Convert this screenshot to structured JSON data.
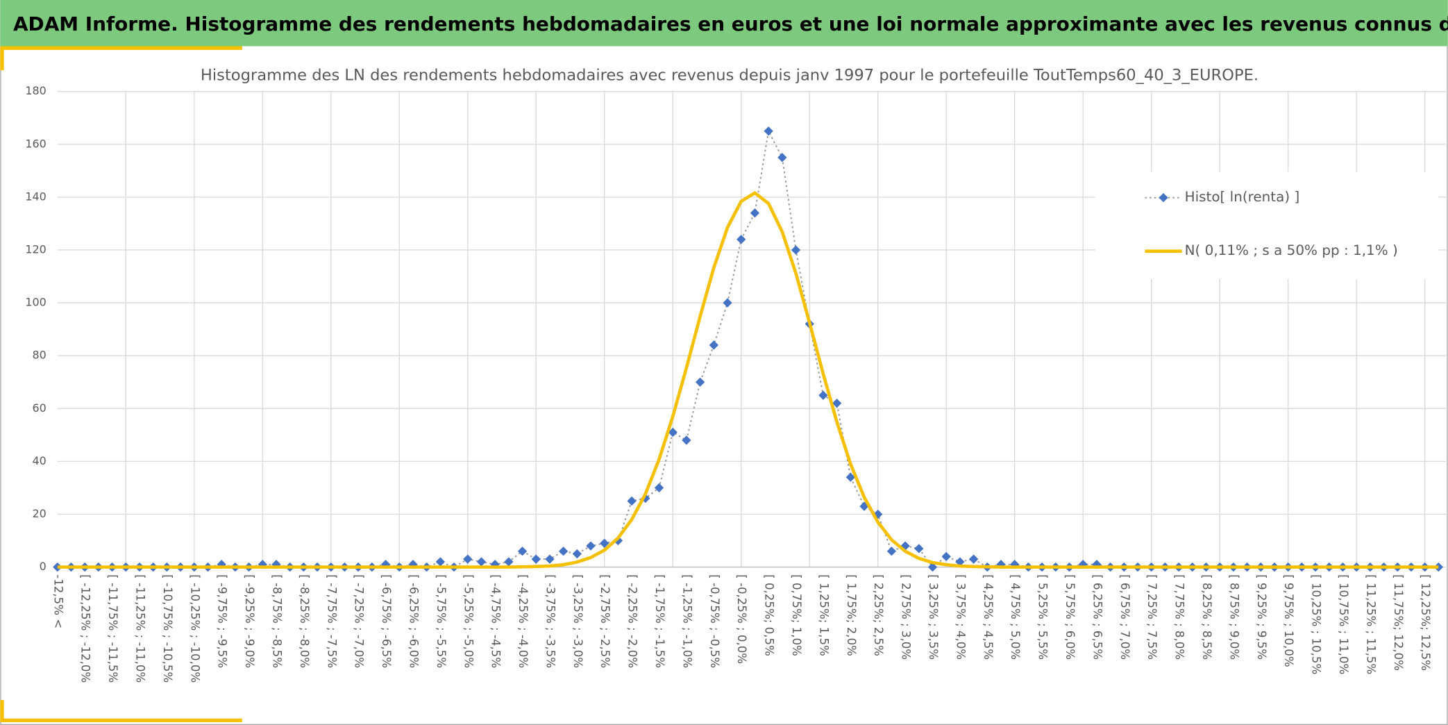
{
  "header": {
    "title": "ADAM Informe. Histogramme des rendements hebdomadaires en euros et une loi normale approximante avec les revenus connus distribués"
  },
  "chart_data": {
    "type": "line",
    "title": "Histogramme des LN des rendements hebdomadaires avec revenus depuis janv 1997 pour le portefeuille ToutTemps60_40_3_EUROPE.",
    "categories": [
      "-12,5% <",
      null,
      "[ -12,25% ; -12,0%",
      null,
      "[ -11,75% ; -11,5%",
      null,
      "[ -11,25% ; -11,0%",
      null,
      "[ -10,75% ; -10,5%",
      null,
      "[ -10,25% ; -10,0%",
      null,
      "[ -9,75% ; -9,5%",
      null,
      "[ -9,25% ; -9,0%",
      null,
      "[ -8,75% ; -8,5%",
      null,
      "[ -8,25% ; -8,0%",
      null,
      "[ -7,75% ; -7,5%",
      null,
      "[ -7,25% ; -7,0%",
      null,
      "[ -6,75% ; -6,5%",
      null,
      "[ -6,25% ; -6,0%",
      null,
      "[ -5,75% ; -5,5%",
      null,
      "[ -5,25% ; -5,0%",
      null,
      "[ -4,75% ; -4,5%",
      null,
      "[ -4,25% ; -4,0%",
      null,
      "[ -3,75% ; -3,5%",
      null,
      "[ -3,25% ; -3,0%",
      null,
      "[ -2,75% ; -2,5%",
      null,
      "[ -2,25% ; -2,0%",
      null,
      "[ -1,75% ; -1,5%",
      null,
      "[ -1,25% ; -1,0%",
      null,
      "[ -0,75% ; -0,5%",
      null,
      "[ -0,25% ; 0,0%",
      null,
      "[ 0,25%; 0,5%",
      null,
      "[ 0,75%; 1,0%",
      null,
      "[ 1,25%; 1,5%",
      null,
      "[ 1,75%; 2,0%",
      null,
      "[ 2,25%; 2,5%",
      null,
      "[ 2,75% ; 3,0%",
      null,
      "[ 3,25% ; 3,5%",
      null,
      "[ 3,75% ; 4,0%",
      null,
      "[ 4,25% ; 4,5%",
      null,
      "[ 4,75% ; 5,0%",
      null,
      "[ 5,25% ; 5,5%",
      null,
      "[ 5,75% ; 6,0%",
      null,
      "[ 6,25% ; 6,5%",
      null,
      "[ 6,75% ; 7,0%",
      null,
      "[ 7,25% ; 7,5%",
      null,
      "[ 7,75% ; 8,0%",
      null,
      "[ 8,25% ; 8,5%",
      null,
      "[ 8,75% ; 9,0%",
      null,
      "[ 9,25% ; 9,5%",
      null,
      "[ 9,75% ; 10,0%",
      null,
      "[ 10,25% ; 10,5%",
      null,
      "[ 10,75% ; 11,0%",
      null,
      "[ 11,25% ; 11,5%",
      null,
      "[ 11,75%; 12,0%",
      null,
      "[ 12,25%; 12,5%",
      null
    ],
    "series": [
      {
        "name": "Histo[ ln(renta) ]",
        "color": "#4472c4",
        "line_color": "#9a9a9a",
        "line_style": "dotted",
        "marker": "diamond",
        "values": [
          0,
          0,
          0,
          0,
          0,
          0,
          0,
          0,
          0,
          0,
          0,
          0,
          1,
          0,
          0,
          1,
          1,
          0,
          0,
          0,
          0,
          0,
          0,
          0,
          1,
          0,
          1,
          0,
          2,
          0,
          3,
          2,
          1,
          2,
          6,
          3,
          3,
          6,
          5,
          8,
          9,
          10,
          25,
          26,
          30,
          51,
          48,
          70,
          84,
          100,
          124,
          134,
          165,
          155,
          120,
          92,
          65,
          62,
          34,
          23,
          20,
          6,
          8,
          7,
          0,
          4,
          2,
          3,
          0,
          1,
          1,
          0,
          0,
          0,
          0,
          1,
          1,
          0,
          0,
          0,
          0,
          0,
          0,
          0,
          0,
          0,
          0,
          0,
          0,
          0,
          0,
          0,
          0,
          0,
          0,
          0,
          0,
          0,
          0,
          0,
          0,
          0
        ]
      },
      {
        "name": "N( 0,11% ; s a 50% pp : 1,1% )",
        "color": "#f5c000",
        "line_style": "solid",
        "values": [
          0,
          0,
          0,
          0,
          0,
          0,
          0,
          0,
          0,
          0,
          0,
          0,
          0,
          0,
          0,
          0,
          0,
          0,
          0,
          0,
          0,
          0,
          0,
          0,
          0,
          0,
          0,
          0,
          0,
          0,
          0,
          0,
          0,
          0,
          0.1,
          0.2,
          0.4,
          0.9,
          1.9,
          3.6,
          6.4,
          11.0,
          18.0,
          27.7,
          40.8,
          57.0,
          75.4,
          94.9,
          113.3,
          128.5,
          138.4,
          141.6,
          137.6,
          126.9,
          111.2,
          92.5,
          73.1,
          54.9,
          39.0,
          26.4,
          17.0,
          10.3,
          6.0,
          3.3,
          1.7,
          0.9,
          0.4,
          0.2,
          0.1,
          0,
          0,
          0,
          0,
          0,
          0,
          0,
          0,
          0,
          0,
          0,
          0,
          0,
          0,
          0,
          0,
          0,
          0,
          0,
          0,
          0,
          0,
          0,
          0,
          0,
          0,
          0,
          0,
          0,
          0,
          0,
          0,
          0
        ]
      }
    ],
    "ylim": [
      0,
      180
    ],
    "yticks": [
      0,
      20,
      40,
      60,
      80,
      100,
      120,
      140,
      160,
      180
    ],
    "grid": true,
    "legend": "right"
  }
}
